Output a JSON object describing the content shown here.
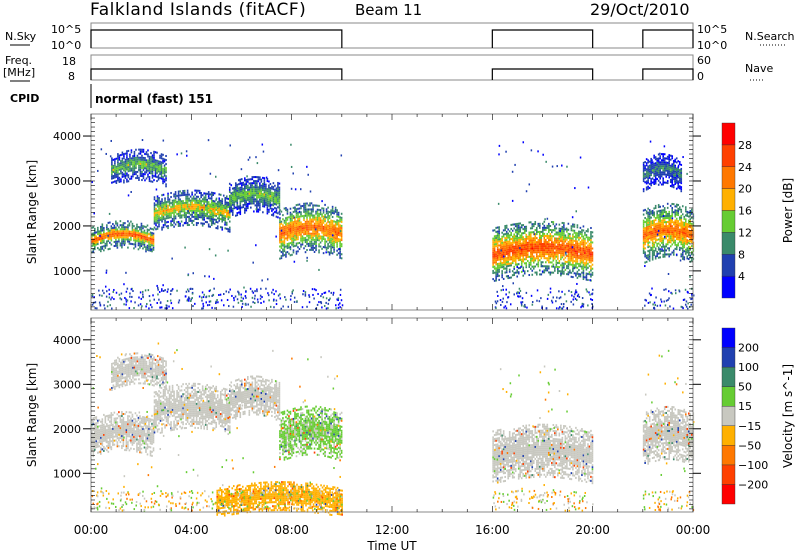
{
  "header": {
    "title": "Falkland Islands (fitACF)",
    "beam": "Beam 11",
    "date": "29/Oct/2010"
  },
  "status_panels": {
    "nsky": {
      "label_left": "N.Sky",
      "label_right": "N.Search",
      "ticks": [
        "10^5",
        "10^0"
      ]
    },
    "freq": {
      "label_left_1": "Freq.",
      "label_left_2": "[MHz]",
      "label_right": "Nave",
      "ticks_left": [
        "18",
        "8"
      ],
      "ticks_right": [
        "60",
        "0"
      ]
    },
    "cpid": {
      "label": "CPID",
      "value": "normal (fast) 151"
    }
  },
  "colors": {
    "power_scale": [
      "#0000ff",
      "#2040b0",
      "#3a8a6a",
      "#66cc33",
      "#ffb000",
      "#ff7800",
      "#ff4000",
      "#ff0000"
    ],
    "velocity_scale": [
      "#ff0000",
      "#ff4000",
      "#ff7800",
      "#ffb000",
      "#c8c8c0",
      "#66cc33",
      "#3a8a6a",
      "#2040b0",
      "#0000ff"
    ]
  },
  "chart_data": [
    {
      "type": "heatmap",
      "title": "Power",
      "xlabel": "Time UT",
      "ylabel": "Slant Range [km]",
      "x_ticks": [
        "00:00",
        "04:00",
        "08:00",
        "12:00",
        "16:00",
        "20:00",
        "00:00"
      ],
      "y_ticks": [
        1000,
        2000,
        3000,
        4000
      ],
      "xlim_hours": [
        0,
        24
      ],
      "ylim": [
        130,
        4490
      ],
      "colorbar": {
        "label": "Power [dB]",
        "ticks": [
          4,
          8,
          12,
          16,
          20,
          24,
          28
        ]
      },
      "data_windows_hours": [
        [
          0,
          10
        ],
        [
          16,
          20
        ],
        [
          22,
          24
        ]
      ],
      "echo_bands": [
        {
          "t_start": 0.0,
          "t_end": 2.5,
          "range_km": [
            1500,
            1800
          ],
          "power_db": 26
        },
        {
          "t_start": 0.8,
          "t_end": 3.0,
          "range_km": [
            3000,
            3400
          ],
          "power_db": 14
        },
        {
          "t_start": 2.5,
          "t_end": 5.5,
          "range_km": [
            2000,
            2500
          ],
          "power_db": 18
        },
        {
          "t_start": 5.5,
          "t_end": 7.5,
          "range_km": [
            2300,
            2800
          ],
          "power_db": 14
        },
        {
          "t_start": 7.5,
          "t_end": 10.0,
          "range_km": [
            1400,
            2200
          ],
          "power_db": 24
        },
        {
          "t_start": 16.0,
          "t_end": 20.0,
          "range_km": [
            900,
            1800
          ],
          "power_db": 26
        },
        {
          "t_start": 22.0,
          "t_end": 24.0,
          "range_km": [
            1300,
            2200
          ],
          "power_db": 24
        },
        {
          "t_start": 22.0,
          "t_end": 23.5,
          "range_km": [
            2900,
            3300
          ],
          "power_db": 10
        }
      ]
    },
    {
      "type": "heatmap",
      "title": "Velocity",
      "xlabel": "Time UT",
      "ylabel": "Slant Range [km]",
      "x_ticks": [
        "00:00",
        "04:00",
        "08:00",
        "12:00",
        "16:00",
        "20:00",
        "00:00"
      ],
      "y_ticks": [
        1000,
        2000,
        3000,
        4000
      ],
      "xlim_hours": [
        0,
        24
      ],
      "ylim": [
        130,
        4490
      ],
      "colorbar": {
        "label": "Velocity [m s^-1]",
        "ticks": [
          200,
          100,
          50,
          15,
          -15,
          -50,
          -100,
          -200
        ]
      },
      "echo_bands": [
        {
          "t_start": 0.0,
          "t_end": 2.5,
          "range_km": [
            1500,
            2100
          ],
          "velocity": 0
        },
        {
          "t_start": 0.8,
          "t_end": 3.0,
          "range_km": [
            3000,
            3400
          ],
          "velocity": 0
        },
        {
          "t_start": 2.5,
          "t_end": 5.5,
          "range_km": [
            2000,
            2700
          ],
          "velocity": 0
        },
        {
          "t_start": 5.5,
          "t_end": 7.5,
          "range_km": [
            2300,
            2900
          ],
          "velocity": 0
        },
        {
          "t_start": 7.5,
          "t_end": 10.0,
          "range_km": [
            1400,
            2200
          ],
          "velocity": 20
        },
        {
          "t_start": 16.0,
          "t_end": 20.0,
          "range_km": [
            900,
            1800
          ],
          "velocity": 0
        },
        {
          "t_start": 22.0,
          "t_end": 24.0,
          "range_km": [
            1300,
            2200
          ],
          "velocity": 0
        },
        {
          "t_start": 5.0,
          "t_end": 10.0,
          "range_km": [
            150,
            500
          ],
          "velocity": -30
        }
      ]
    }
  ]
}
